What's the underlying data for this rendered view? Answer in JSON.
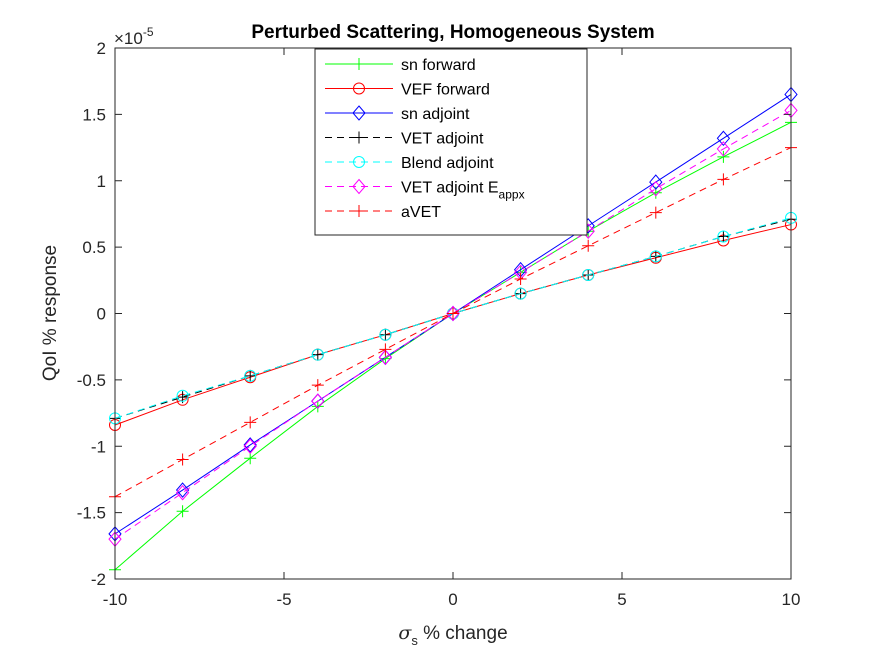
{
  "chart_data": {
    "type": "line",
    "title": "Perturbed Scattering, Homogeneous System",
    "xlabel": {
      "symbol": "σ",
      "subscript": "s",
      "rest": " % change"
    },
    "ylabel": "QoI % response",
    "exponent": {
      "base": "×10",
      "power": "-5"
    },
    "xlim": [
      -10,
      10
    ],
    "ylim": [
      -2,
      2
    ],
    "xticks": [
      -10,
      -5,
      0,
      5,
      10
    ],
    "xtick_labels": [
      "-10",
      "-5",
      "0",
      "5",
      "10"
    ],
    "yticks": [
      -2,
      -1.5,
      -1,
      -0.5,
      0,
      0.5,
      1,
      1.5,
      2
    ],
    "ytick_labels": [
      "-2",
      "-1.5",
      "-1",
      "-0.5",
      "0",
      "0.5",
      "1",
      "1.5",
      "2"
    ],
    "grid": false,
    "legend_position": "top-center",
    "x": [
      -10,
      -8,
      -6,
      -4,
      -2,
      0,
      2,
      4,
      6,
      8,
      10
    ],
    "series": [
      {
        "name": "sn forward",
        "color": "#00ff00",
        "dash": "solid",
        "marker": "plus",
        "values": [
          -1.93,
          -1.49,
          -1.09,
          -0.7,
          -0.34,
          0,
          0.31,
          0.62,
          0.91,
          1.18,
          1.44
        ]
      },
      {
        "name": "VEF forward",
        "color": "#ff0000",
        "dash": "solid",
        "marker": "circle",
        "values": [
          -0.84,
          -0.65,
          -0.48,
          -0.31,
          -0.16,
          0,
          0.15,
          0.29,
          0.42,
          0.55,
          0.67
        ]
      },
      {
        "name": "sn adjoint",
        "color": "#0000ff",
        "dash": "solid",
        "marker": "diamond",
        "values": [
          -1.66,
          -1.33,
          -0.99,
          -0.66,
          -0.33,
          0,
          0.33,
          0.66,
          0.99,
          1.32,
          1.65
        ]
      },
      {
        "name": "VET adjoint",
        "color": "#000000",
        "dash": "dashed",
        "marker": "plus",
        "values": [
          -0.79,
          -0.63,
          -0.47,
          -0.31,
          -0.16,
          0,
          0.15,
          0.29,
          0.43,
          0.58,
          0.71
        ]
      },
      {
        "name": "Blend adjoint",
        "color": "#00ffff",
        "dash": "dashed",
        "marker": "circle",
        "values": [
          -0.79,
          -0.62,
          -0.47,
          -0.31,
          -0.16,
          0,
          0.15,
          0.29,
          0.43,
          0.58,
          0.72
        ]
      },
      {
        "name": "VET adjoint E",
        "subscript": "appx",
        "color": "#ff00ff",
        "dash": "dashed",
        "marker": "diamond",
        "values": [
          -1.7,
          -1.35,
          -1.0,
          -0.66,
          -0.33,
          0,
          0.31,
          0.62,
          0.94,
          1.24,
          1.53
        ]
      },
      {
        "name": "aVET",
        "color": "#ff0000",
        "dash": "dashed",
        "marker": "plus",
        "values": [
          -1.38,
          -1.1,
          -0.82,
          -0.54,
          -0.27,
          0,
          0.26,
          0.51,
          0.76,
          1.01,
          1.25
        ]
      }
    ]
  }
}
